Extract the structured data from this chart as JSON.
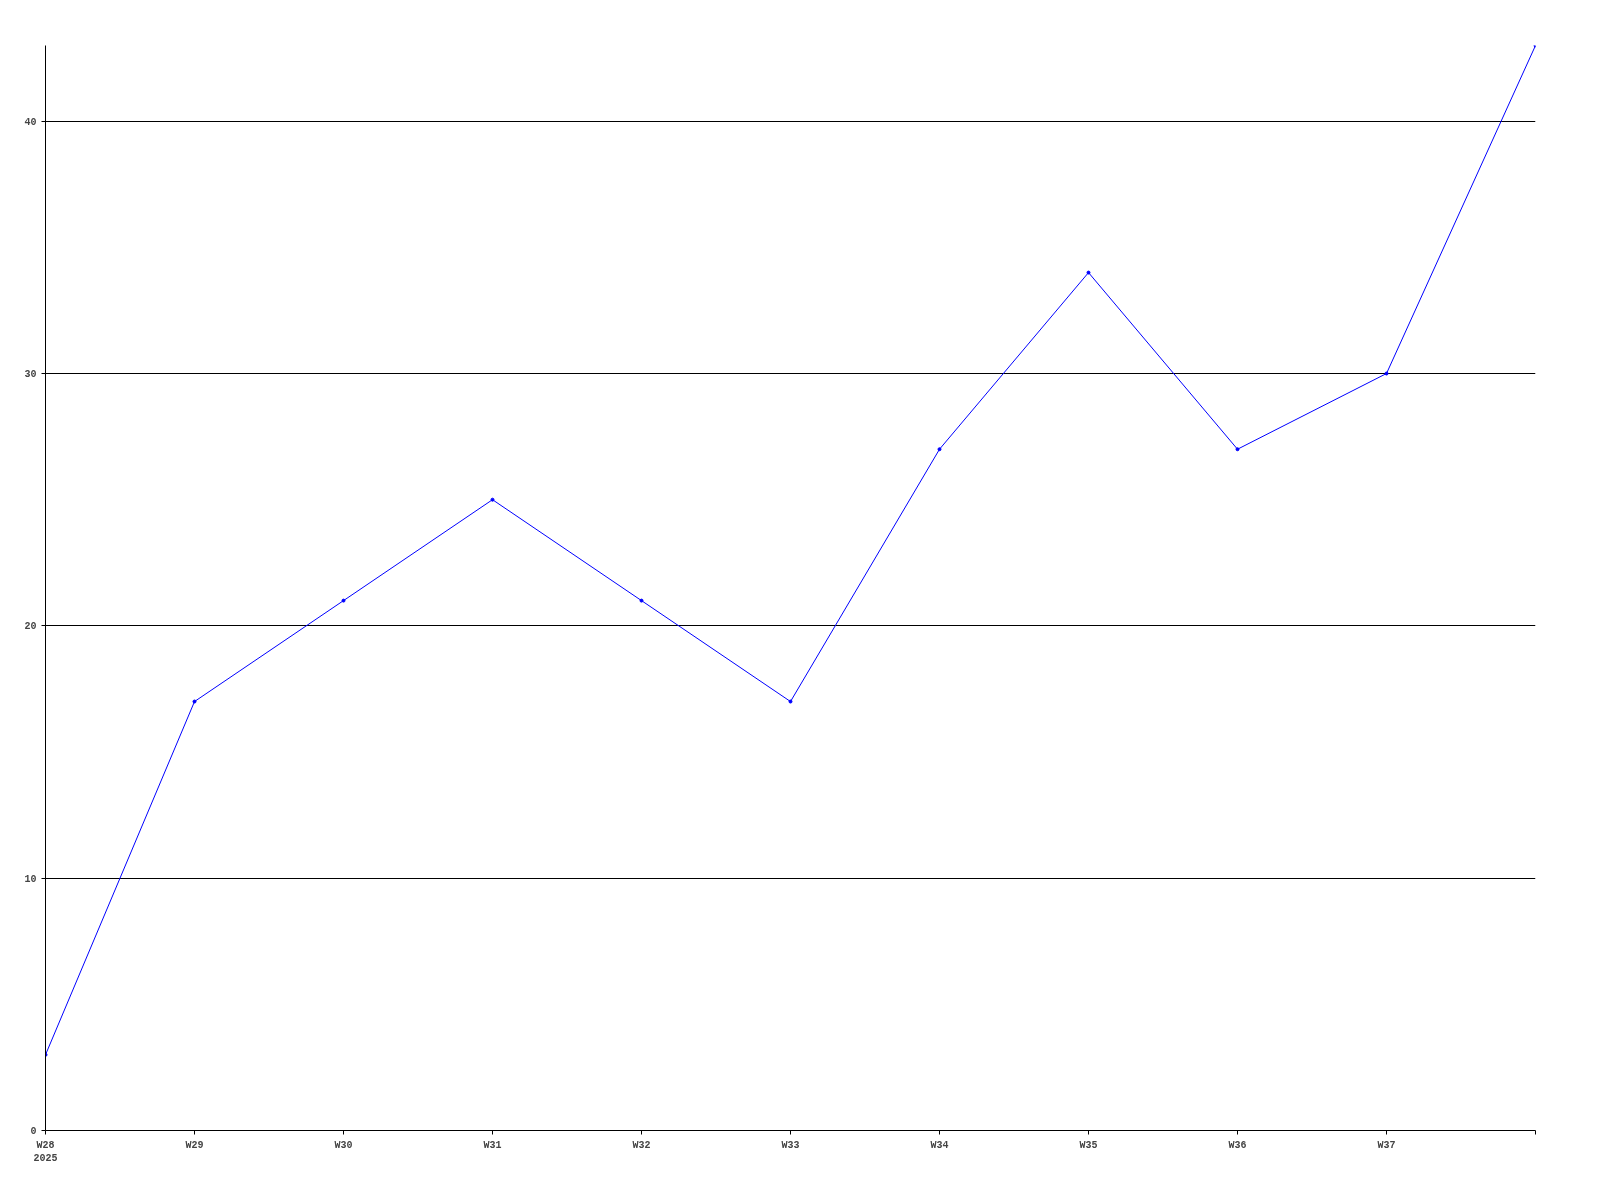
{
  "chart_data": {
    "type": "line",
    "categories": [
      "W28\n2025",
      "W29",
      "W30",
      "W31",
      "W32",
      "W33",
      "W34",
      "W35",
      "W36",
      "W37",
      null
    ],
    "series": [
      {
        "color": "#0000ff",
        "values": [
          3,
          17,
          21,
          25,
          21,
          17,
          27,
          34,
          27,
          30,
          43
        ]
      }
    ],
    "ylim": [
      0,
      43
    ],
    "yticks": [
      0,
      10,
      20,
      30,
      40
    ],
    "grid": "y",
    "marker": "circle",
    "line_style": "solid"
  }
}
